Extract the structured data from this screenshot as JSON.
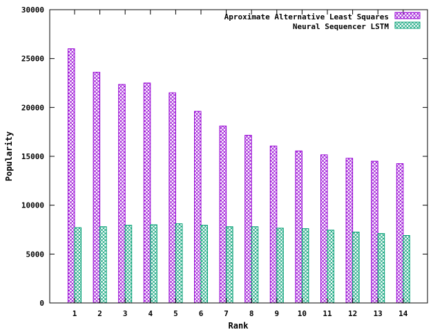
{
  "chart_data": {
    "type": "bar",
    "title": "",
    "xlabel": "Rank",
    "ylabel": "Popularity",
    "ylim": [
      0,
      30000
    ],
    "yticks": [
      0,
      5000,
      10000,
      15000,
      20000,
      25000,
      30000
    ],
    "categories": [
      "1",
      "2",
      "3",
      "4",
      "5",
      "6",
      "7",
      "8",
      "9",
      "10",
      "11",
      "12",
      "13",
      "14"
    ],
    "legend_position": "top-right",
    "grid": false,
    "series": [
      {
        "name": "Aproximate Alternative Least Squares",
        "color": "#9400d3",
        "pattern": "crosshatch",
        "values": [
          26000,
          23600,
          22350,
          22500,
          21500,
          19600,
          18100,
          17150,
          16050,
          15550,
          15150,
          14800,
          14500,
          14250
        ]
      },
      {
        "name": "Neural Sequencer LSTM",
        "color": "#009e73",
        "pattern": "crosshatch",
        "values": [
          7700,
          7800,
          7950,
          8000,
          8100,
          7950,
          7800,
          7800,
          7650,
          7600,
          7450,
          7250,
          7100,
          6900
        ]
      }
    ]
  }
}
